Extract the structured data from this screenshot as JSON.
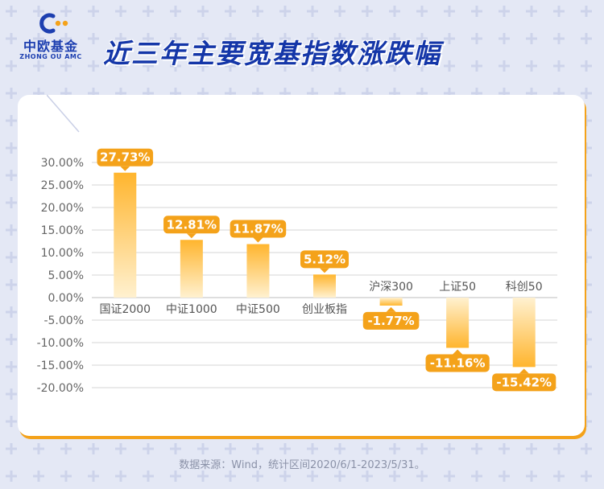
{
  "brand": {
    "name_cn": "中欧基金",
    "name_en": "ZHONG OU AMC"
  },
  "title": "近三年主要宽基指数涨跌幅",
  "source": "数据来源：Wind，统计区间2020/6/1-2023/5/31。",
  "colors": {
    "bar_top": "#ffbc3a",
    "bar_bottom": "#fff0cc",
    "label_bg": "#f4a21a",
    "label_text": "#ffffff",
    "title": "#1436a8",
    "brand": "#1d3fb0",
    "axis_text": "#666666",
    "grid": "#d6d6d6"
  },
  "chart_data": {
    "type": "bar",
    "categories": [
      "国证2000",
      "中证1000",
      "中证500",
      "创业板指",
      "沪深300",
      "上证50",
      "科创50"
    ],
    "values": [
      27.73,
      12.81,
      11.87,
      5.12,
      -1.77,
      -11.16,
      -15.42
    ],
    "value_labels": [
      "27.73%",
      "12.81%",
      "11.87%",
      "5.12%",
      "-1.77%",
      "-11.16%",
      "-15.42%"
    ],
    "yticks": [
      "30.00%",
      "25.00%",
      "20.00%",
      "15.00%",
      "10.00%",
      "5.00%",
      "0.00%",
      "-5.00%",
      "-10.00%",
      "-15.00%",
      "-20.00%"
    ],
    "ytick_values": [
      30,
      25,
      20,
      15,
      10,
      5,
      0,
      -5,
      -10,
      -15,
      -20
    ],
    "ylim": [
      -20,
      30
    ],
    "grid": true,
    "legend": "none",
    "xlabel": "",
    "ylabel": ""
  }
}
